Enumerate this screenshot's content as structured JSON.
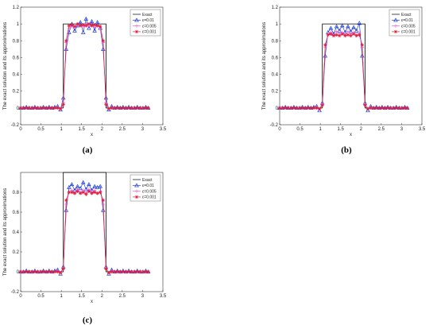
{
  "chart_data": [
    {
      "type": "line",
      "panel_label": "(a)",
      "xlabel": "x",
      "ylabel": "The exact solution and its approximations",
      "xlim": [
        0,
        3.5
      ],
      "ylim": [
        -0.2,
        1.2
      ],
      "xticks": [
        "0",
        "0.5",
        "1",
        "1.5",
        "2",
        "2.5",
        "3",
        "3.5"
      ],
      "yticks": [
        "-0.2",
        "0",
        "0.2",
        "0.4",
        "0.6",
        "0.8",
        "1",
        "1.2"
      ],
      "legend_position": "top-right",
      "exact": {
        "name": "Exact",
        "x": [
          0,
          1.05,
          1.05,
          2.1,
          2.1,
          3.14
        ],
        "y": [
          0,
          0,
          1,
          1,
          0,
          0
        ],
        "color": "#000000"
      },
      "x": [
        0.0,
        0.07,
        0.14,
        0.21,
        0.28,
        0.35,
        0.42,
        0.49,
        0.56,
        0.63,
        0.7,
        0.77,
        0.84,
        0.91,
        0.98,
        1.05,
        1.12,
        1.19,
        1.26,
        1.33,
        1.4,
        1.47,
        1.54,
        1.61,
        1.68,
        1.75,
        1.82,
        1.89,
        1.96,
        2.03,
        2.1,
        2.17,
        2.24,
        2.31,
        2.38,
        2.45,
        2.52,
        2.59,
        2.66,
        2.73,
        2.8,
        2.87,
        2.94,
        3.01,
        3.08,
        3.14
      ],
      "series": [
        {
          "name": "ε=0.01",
          "color": "#1f3fd6",
          "marker": "triangle",
          "values": [
            0,
            0,
            0.01,
            0,
            0,
            0.01,
            0,
            0,
            0.01,
            0,
            0.01,
            0,
            0.01,
            0.02,
            -0.02,
            0.12,
            0.7,
            0.9,
            1.0,
            0.92,
            0.98,
            1.02,
            0.9,
            1.06,
            0.95,
            1.03,
            0.92,
            1.02,
            0.95,
            0.7,
            0.12,
            -0.02,
            0.02,
            0,
            0.01,
            0,
            0.01,
            0,
            0.01,
            0,
            0,
            0.01,
            0,
            0,
            0.01,
            0
          ]
        },
        {
          "name": "ε=0.005",
          "color": "#ee66dd",
          "marker": "plus",
          "values": [
            0,
            0,
            0,
            0,
            0,
            0,
            0,
            0,
            0,
            0,
            0,
            0,
            0,
            0.01,
            -0.01,
            0.06,
            0.78,
            0.95,
            0.97,
            0.96,
            0.99,
            0.98,
            0.97,
            1.0,
            0.97,
            0.99,
            0.96,
            0.98,
            0.95,
            0.78,
            0.06,
            -0.01,
            0.01,
            0,
            0,
            0,
            0,
            0,
            0,
            0,
            0,
            0,
            0,
            0,
            0,
            0
          ]
        },
        {
          "name": "ε=0.001",
          "color": "#e0203a",
          "marker": "star",
          "values": [
            0,
            0,
            0,
            0,
            0,
            0,
            0,
            0,
            0,
            0,
            0,
            0,
            0,
            0,
            -0.01,
            0.04,
            0.8,
            0.98,
            0.99,
            0.97,
            1.0,
            0.98,
            0.99,
            0.98,
            1.0,
            0.98,
            0.99,
            0.98,
            0.97,
            0.8,
            0.04,
            -0.01,
            0,
            0,
            0,
            0,
            0,
            0,
            0,
            0,
            0,
            0,
            0,
            0,
            0,
            0
          ]
        }
      ]
    },
    {
      "type": "line",
      "panel_label": "(b)",
      "xlabel": "x",
      "ylabel": "The exact solution and its approximations",
      "xlim": [
        0,
        3.5
      ],
      "ylim": [
        -0.2,
        1.2
      ],
      "xticks": [
        "0",
        "0.5",
        "1",
        "1.5",
        "2",
        "2.5",
        "3",
        "3.5"
      ],
      "yticks": [
        "-0.2",
        "0",
        "0.2",
        "0.4",
        "0.6",
        "0.8",
        "1",
        "1.2"
      ],
      "legend_position": "top-right",
      "exact": {
        "name": "Exact",
        "x": [
          0,
          1.05,
          1.05,
          2.1,
          2.1,
          3.14
        ],
        "y": [
          0,
          0,
          1,
          1,
          0,
          0
        ],
        "color": "#000000"
      },
      "x": [
        0.0,
        0.07,
        0.14,
        0.21,
        0.28,
        0.35,
        0.42,
        0.49,
        0.56,
        0.63,
        0.7,
        0.77,
        0.84,
        0.91,
        0.98,
        1.05,
        1.12,
        1.19,
        1.26,
        1.33,
        1.4,
        1.47,
        1.54,
        1.61,
        1.68,
        1.75,
        1.82,
        1.89,
        1.96,
        2.03,
        2.1,
        2.17,
        2.24,
        2.31,
        2.38,
        2.45,
        2.52,
        2.59,
        2.66,
        2.73,
        2.8,
        2.87,
        2.94,
        3.01,
        3.08,
        3.14
      ],
      "series": [
        {
          "name": "ε=0.01",
          "color": "#1f3fd6",
          "marker": "triangle",
          "values": [
            0,
            0,
            0.01,
            0,
            0,
            0.01,
            0,
            0,
            0.01,
            0,
            0.01,
            0,
            0.01,
            0.02,
            -0.03,
            0.06,
            0.62,
            0.9,
            0.95,
            0.88,
            0.97,
            0.92,
            0.98,
            0.9,
            0.97,
            0.91,
            0.96,
            0.92,
            1.01,
            0.62,
            0.06,
            -0.03,
            0.02,
            0,
            0.01,
            0,
            0.01,
            0,
            0.01,
            0,
            0,
            0.01,
            0,
            0,
            0.01,
            0
          ]
        },
        {
          "name": "ε=0.005",
          "color": "#ee66dd",
          "marker": "plus",
          "values": [
            0,
            0,
            0,
            0,
            0,
            0,
            0,
            0,
            0,
            0,
            0,
            0,
            0,
            0.01,
            -0.01,
            0.05,
            0.72,
            0.88,
            0.9,
            0.87,
            0.91,
            0.88,
            0.9,
            0.87,
            0.91,
            0.88,
            0.9,
            0.87,
            0.89,
            0.72,
            0.05,
            -0.01,
            0.01,
            0,
            0,
            0,
            0,
            0,
            0,
            0,
            0,
            0,
            0,
            0,
            0,
            0
          ]
        },
        {
          "name": "ε=0.001",
          "color": "#e0203a",
          "marker": "star",
          "values": [
            0,
            0,
            0,
            0,
            0,
            0,
            0,
            0,
            0,
            0,
            0,
            0,
            0,
            0,
            -0.01,
            0.03,
            0.75,
            0.87,
            0.88,
            0.86,
            0.87,
            0.86,
            0.88,
            0.86,
            0.87,
            0.86,
            0.88,
            0.86,
            0.87,
            0.75,
            0.03,
            -0.01,
            0,
            0,
            0,
            0,
            0,
            0,
            0,
            0,
            0,
            0,
            0,
            0,
            0,
            0
          ]
        }
      ]
    },
    {
      "type": "line",
      "panel_label": "(c)",
      "xlabel": "x",
      "ylabel": "The exact solution and its approximations",
      "xlim": [
        0,
        3.5
      ],
      "ylim": [
        -0.2,
        1.0
      ],
      "xticks": [
        "0",
        "0.5",
        "1",
        "1.5",
        "2",
        "2.5",
        "3",
        "3.5"
      ],
      "yticks": [
        "-0.2",
        "0",
        "0.2",
        "0.4",
        "0.6",
        "0.8"
      ],
      "legend_position": "top-right",
      "exact": {
        "name": "Exact",
        "x": [
          0,
          1.05,
          1.05,
          2.1,
          2.1,
          3.14
        ],
        "y": [
          0,
          0,
          1,
          1,
          0,
          0
        ],
        "color": "#000000"
      },
      "x": [
        0.0,
        0.07,
        0.14,
        0.21,
        0.28,
        0.35,
        0.42,
        0.49,
        0.56,
        0.63,
        0.7,
        0.77,
        0.84,
        0.91,
        0.98,
        1.05,
        1.12,
        1.19,
        1.26,
        1.33,
        1.4,
        1.47,
        1.54,
        1.61,
        1.68,
        1.75,
        1.82,
        1.89,
        1.96,
        2.03,
        2.1,
        2.17,
        2.24,
        2.31,
        2.38,
        2.45,
        2.52,
        2.59,
        2.66,
        2.73,
        2.8,
        2.87,
        2.94,
        3.01,
        3.08,
        3.14
      ],
      "series": [
        {
          "name": "ε=0.01",
          "color": "#1f3fd6",
          "marker": "triangle",
          "values": [
            0,
            0,
            0.01,
            0,
            0,
            0.01,
            0,
            0,
            0.01,
            0,
            0.01,
            0,
            0.01,
            0.02,
            -0.02,
            0.05,
            0.62,
            0.85,
            0.88,
            0.82,
            0.86,
            0.84,
            0.9,
            0.83,
            0.88,
            0.82,
            0.86,
            0.85,
            0.86,
            0.62,
            0.05,
            -0.02,
            0.02,
            0,
            0.01,
            0,
            0.01,
            0,
            0.01,
            0,
            0,
            0.01,
            0,
            0,
            0.01,
            0
          ]
        },
        {
          "name": "ε=0.005",
          "color": "#ee66dd",
          "marker": "plus",
          "values": [
            0,
            0,
            0,
            0,
            0,
            0,
            0,
            0,
            0,
            0,
            0,
            0,
            0,
            0.01,
            -0.01,
            0.04,
            0.68,
            0.8,
            0.82,
            0.79,
            0.83,
            0.8,
            0.82,
            0.79,
            0.83,
            0.8,
            0.82,
            0.79,
            0.81,
            0.68,
            0.04,
            -0.01,
            0.01,
            0,
            0,
            0,
            0,
            0,
            0,
            0,
            0,
            0,
            0,
            0,
            0,
            0
          ]
        },
        {
          "name": "ε=0.001",
          "color": "#e0203a",
          "marker": "star",
          "values": [
            0,
            0,
            0,
            0,
            0,
            0,
            0,
            0,
            0,
            0,
            0,
            0,
            0,
            0,
            -0.01,
            0.03,
            0.72,
            0.8,
            0.8,
            0.79,
            0.81,
            0.79,
            0.8,
            0.78,
            0.81,
            0.79,
            0.8,
            0.79,
            0.8,
            0.72,
            0.03,
            -0.01,
            0,
            0,
            0,
            0,
            0,
            0,
            0,
            0,
            0,
            0,
            0,
            0,
            0,
            0
          ]
        }
      ]
    }
  ]
}
